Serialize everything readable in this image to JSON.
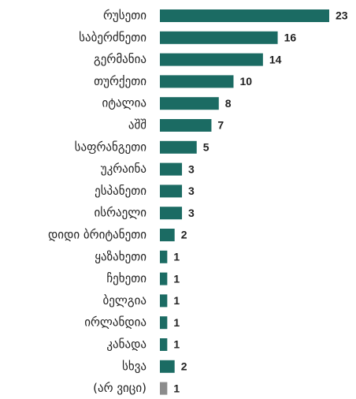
{
  "chart_data": {
    "type": "barh",
    "categories": [
      "რუსეთი",
      "საბერძნეთი",
      "გერმანია",
      "თურქეთი",
      "იტალია",
      "აშშ",
      "საფრანგეთი",
      "უკრაინა",
      "ესპანეთი",
      "ისრაელი",
      "დიდი ბრიტანეთი",
      "ყაზახეთი",
      "ჩეხეთი",
      "ბელგია",
      "ირლანდია",
      "კანადა",
      "სხვა",
      "(არ ვიცი)"
    ],
    "values": [
      23,
      16,
      14,
      10,
      8,
      7,
      5,
      3,
      3,
      3,
      2,
      1,
      1,
      1,
      1,
      1,
      2,
      1
    ],
    "colors": [
      "#1b6b63",
      "#1b6b63",
      "#1b6b63",
      "#1b6b63",
      "#1b6b63",
      "#1b6b63",
      "#1b6b63",
      "#1b6b63",
      "#1b6b63",
      "#1b6b63",
      "#1b6b63",
      "#1b6b63",
      "#1b6b63",
      "#1b6b63",
      "#1b6b63",
      "#1b6b63",
      "#1b6b63",
      "#8c8c8c"
    ]
  }
}
